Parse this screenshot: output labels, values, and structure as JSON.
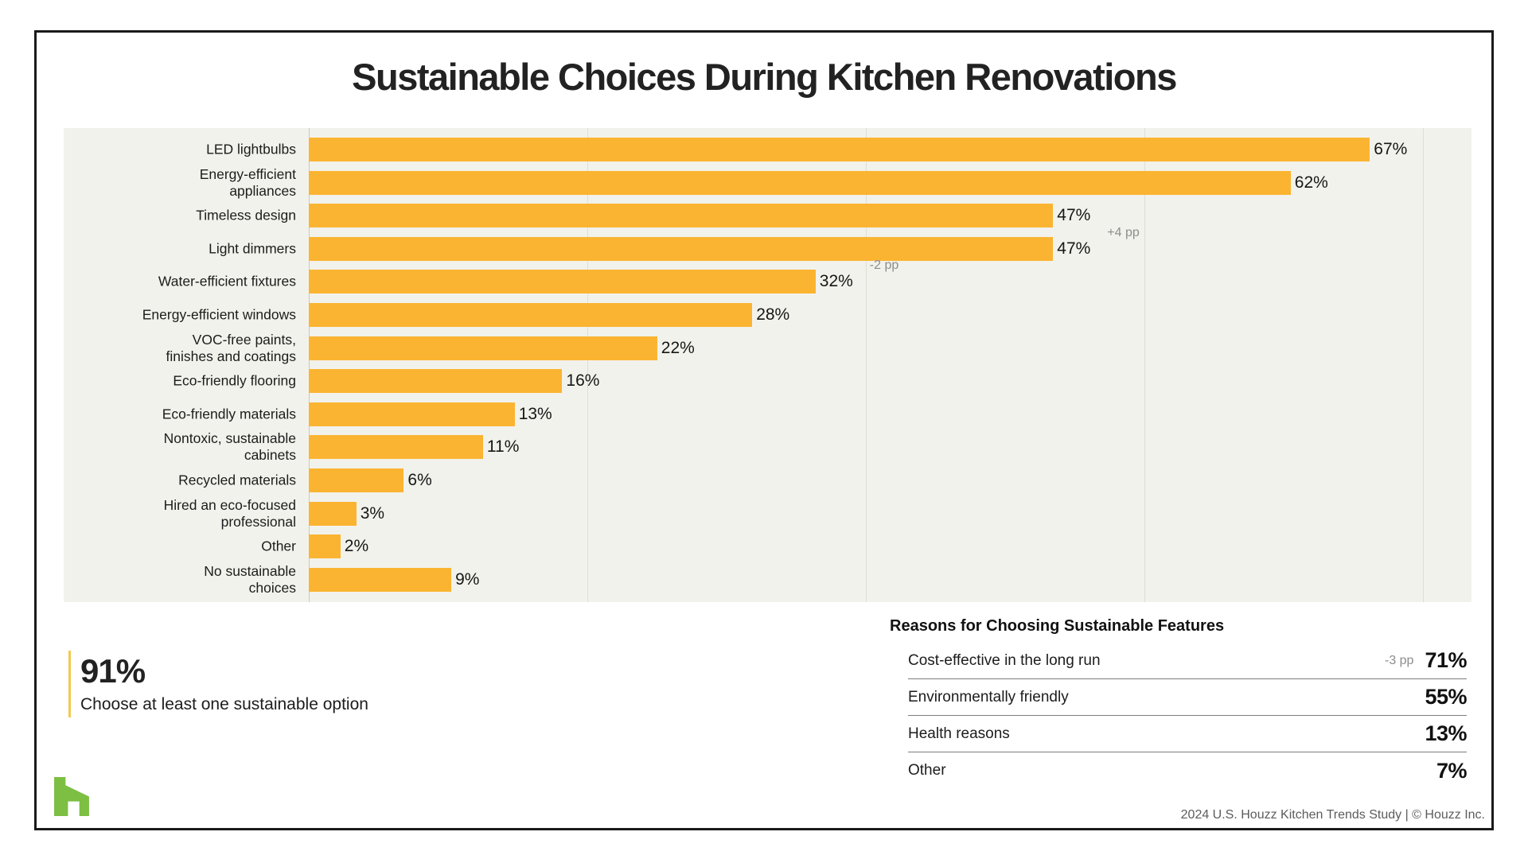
{
  "title": "Sustainable Choices During Kitchen Renovations",
  "chart_data": {
    "type": "bar",
    "orientation": "horizontal",
    "unit": "%",
    "categories": [
      "LED lightbulbs",
      "Energy-efficient\nappliances",
      "Timeless design",
      "Light dimmers",
      "Water-efficient fixtures",
      "Energy-efficient windows",
      "VOC-free paints,\nfinishes and coatings",
      "Eco-friendly flooring",
      "Eco-friendly materials",
      "Nontoxic, sustainable\ncabinets",
      "Recycled materials",
      "Hired an eco-focused\nprofessional",
      "Other",
      "No sustainable\nchoices"
    ],
    "values": [
      67,
      62,
      47,
      47,
      32,
      28,
      22,
      16,
      13,
      11,
      6,
      3,
      2,
      9
    ],
    "value_labels": [
      "67%",
      "62%",
      "47%",
      "47%",
      "32%",
      "28%",
      "22%",
      "16%",
      "13%",
      "11%",
      "6%",
      "3%",
      "2%",
      "9%"
    ],
    "annotations": [
      {
        "category": "Light dimmers",
        "text": "+4 pp"
      },
      {
        "category": "Water-efficient fixtures",
        "text": "-2 pp"
      }
    ],
    "xlim": [
      0,
      75
    ],
    "grid": "vertical-unlabeled",
    "bar_color": "#FBB431",
    "panel_color": "#F2F2EC"
  },
  "highlight": {
    "value": "91%",
    "caption": "Choose at least one sustainable option"
  },
  "reasons": {
    "heading": "Reasons for Choosing Sustainable Features",
    "rows": [
      {
        "label": "Cost-effective in the long run",
        "delta": "-3 pp",
        "value": "71%"
      },
      {
        "label": "Environmentally friendly",
        "delta": "",
        "value": "55%"
      },
      {
        "label": "Health reasons",
        "delta": "",
        "value": "13%"
      },
      {
        "label": "Other",
        "delta": "",
        "value": "7%"
      }
    ]
  },
  "footer": "2024 U.S. Houzz Kitchen Trends Study  |  © Houzz Inc.",
  "logo": {
    "name": "houzz-logo",
    "color": "#7CBF42"
  },
  "colors": {
    "bar": "#FBB431",
    "panel_background": "#F2F2EC",
    "accent_yellow_line": "#F3C94F",
    "annotation_gray": "#8C8C8C",
    "houzz_green": "#7CBF42"
  }
}
